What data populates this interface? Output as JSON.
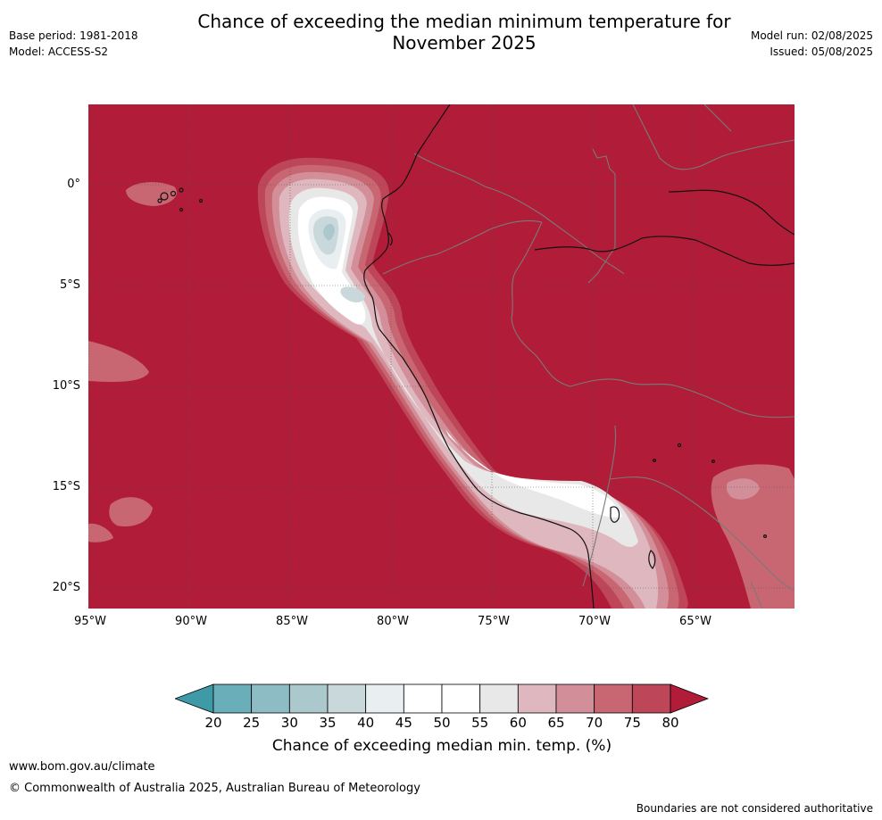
{
  "title_line1": "Chance of exceeding the median minimum temperature for",
  "title_line2": "November 2025",
  "base_period": "Base period: 1981-2018",
  "model": "Model: ACCESS-S2",
  "model_run": "Model run: 02/08/2025",
  "issued": "Issued: 05/08/2025",
  "map": {
    "lat_labels": [
      "0°",
      "5°S",
      "10°S",
      "15°S",
      "20°S"
    ],
    "lon_labels": [
      "95°W",
      "90°W",
      "85°W",
      "80°W",
      "75°W",
      "70°W",
      "65°W"
    ],
    "background_color": "#b11c38"
  },
  "colorbar": {
    "ticks": [
      "20",
      "25",
      "30",
      "35",
      "40",
      "45",
      "50",
      "55",
      "60",
      "65",
      "70",
      "75",
      "80"
    ],
    "colors": [
      "#3f9aa8",
      "#6aaeb9",
      "#8dbcc5",
      "#abc9cd",
      "#c9d8da",
      "#e9eff0",
      "#ffffff",
      "#ffffff",
      "#e9e8e9",
      "#dfb8bf",
      "#d38f99",
      "#c86672",
      "#bd4658",
      "#b11c38"
    ],
    "label": "Chance of exceeding median min. temp. (%)"
  },
  "footer": {
    "website": "www.bom.gov.au/climate",
    "copyright": "© Commonwealth of Australia 2025, Australian Bureau of Meteorology",
    "disclaimer": "Boundaries are not considered authoritative"
  }
}
